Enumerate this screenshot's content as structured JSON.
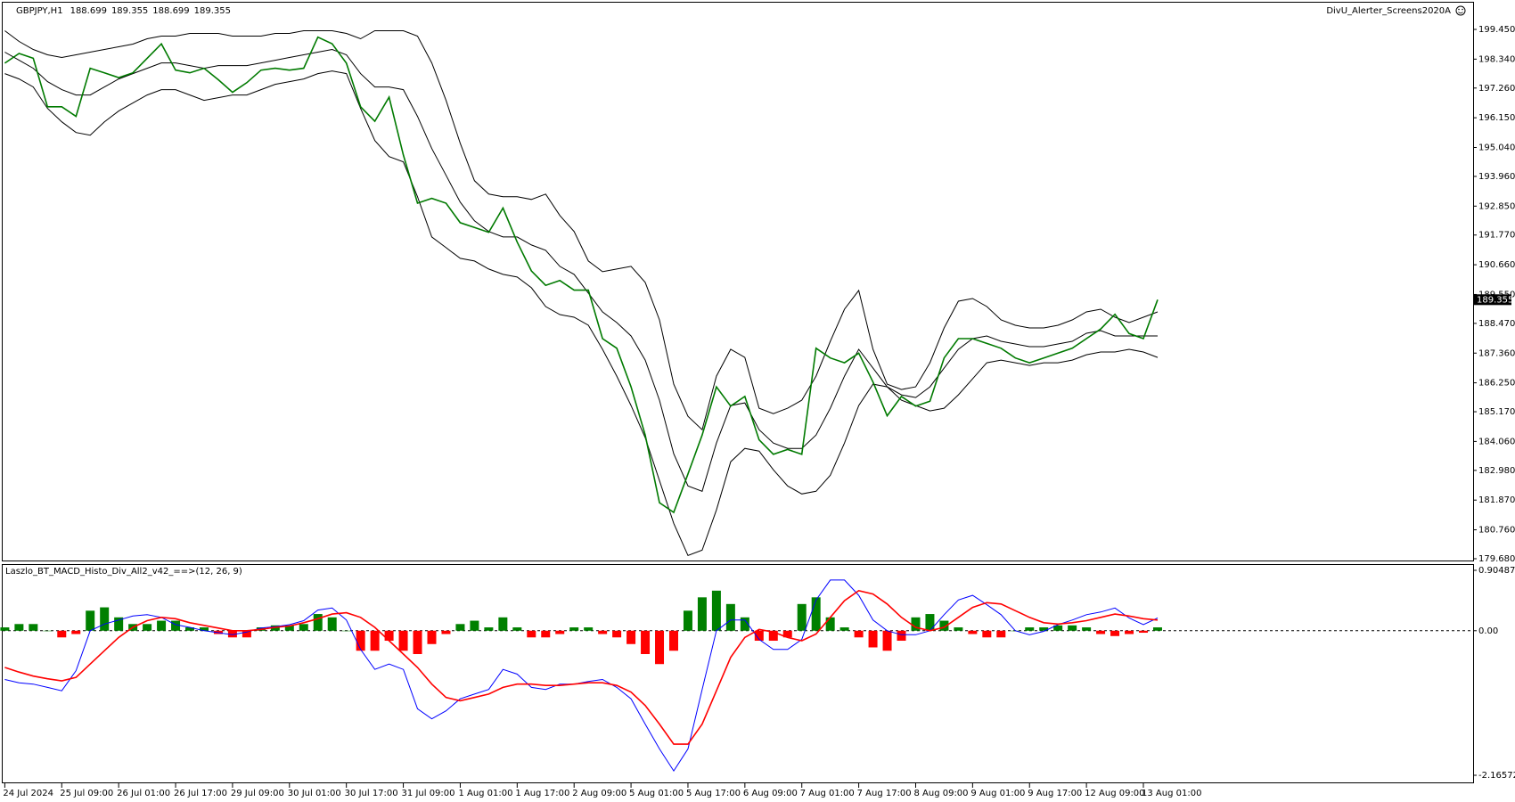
{
  "chart_data": [
    {
      "type": "line",
      "title": "GBPJPY,H1",
      "ohlc": [
        188.699,
        189.355,
        188.699,
        189.355
      ],
      "indicator_label": "DivU_Alerter_Screens2020A",
      "last_price": 189.355,
      "categories": [
        "24 Jul 2024",
        null,
        null,
        null,
        "25 Jul 09:00",
        null,
        null,
        null,
        "26 Jul 01:00",
        null,
        null,
        null,
        "26 Jul 17:00",
        null,
        null,
        null,
        "29 Jul 09:00",
        null,
        null,
        null,
        "30 Jul 01:00",
        null,
        null,
        null,
        "30 Jul 17:00",
        null,
        null,
        null,
        "31 Jul 09:00",
        null,
        null,
        null,
        "1 Aug 01:00",
        null,
        null,
        null,
        "1 Aug 17:00",
        null,
        null,
        null,
        "2 Aug 09:00",
        null,
        null,
        null,
        "5 Aug 01:00",
        null,
        null,
        null,
        "5 Aug 17:00",
        null,
        null,
        null,
        "6 Aug 09:00",
        null,
        null,
        null,
        "7 Aug 01:00",
        null,
        null,
        null,
        "7 Aug 17:00",
        null,
        null,
        null,
        "8 Aug 09:00",
        null,
        null,
        null,
        "9 Aug 01:00",
        null,
        null,
        null,
        "9 Aug 17:00",
        null,
        null,
        null,
        "12 Aug 09:00",
        null,
        null,
        null,
        "13 Aug 01:00",
        null
      ],
      "series": [
        {
          "color": "#000000",
          "values": [
            199.4,
            199.0,
            198.7,
            198.5,
            198.4,
            198.5,
            198.6,
            198.7,
            198.8,
            198.9,
            199.1,
            199.2,
            199.2,
            199.3,
            199.3,
            199.3,
            199.2,
            199.2,
            199.2,
            199.3,
            199.3,
            199.4,
            199.4,
            199.4,
            199.3,
            199.1,
            199.4,
            199.4,
            199.4,
            199.2,
            198.2,
            196.8,
            195.2,
            193.8,
            193.3,
            193.2,
            193.2,
            193.1,
            193.3,
            192.5,
            191.9,
            190.8,
            190.4,
            190.5,
            190.6,
            190.0,
            188.6,
            186.2,
            185.0,
            184.5,
            186.5,
            187.5,
            187.2,
            185.3,
            185.1,
            185.3,
            185.6,
            186.5,
            187.8,
            189.0,
            189.7,
            187.5,
            186.2,
            186.0,
            186.1,
            187.0,
            188.3,
            189.3,
            189.4,
            189.1,
            188.6,
            188.4,
            188.3,
            188.3,
            188.4,
            188.6,
            188.9,
            189.0,
            188.7,
            188.5,
            188.7,
            188.9
          ]
        },
        {
          "color": "#000000",
          "values": [
            198.6,
            198.3,
            198.0,
            197.5,
            197.2,
            197.0,
            197.0,
            197.3,
            197.6,
            197.8,
            198.0,
            198.2,
            198.2,
            198.1,
            198.0,
            198.1,
            198.1,
            198.1,
            198.2,
            198.3,
            198.4,
            198.5,
            198.6,
            198.7,
            198.5,
            197.8,
            197.3,
            197.3,
            197.2,
            196.2,
            195.0,
            194.0,
            193.0,
            192.3,
            191.9,
            191.7,
            191.7,
            191.4,
            191.2,
            190.6,
            190.3,
            189.6,
            188.9,
            188.5,
            188.0,
            187.1,
            185.6,
            183.6,
            182.4,
            182.2,
            184.0,
            185.4,
            185.5,
            184.5,
            184.0,
            183.8,
            183.8,
            184.3,
            185.3,
            186.5,
            187.5,
            186.8,
            186.1,
            185.8,
            185.7,
            186.1,
            186.8,
            187.5,
            187.9,
            188.0,
            187.8,
            187.7,
            187.6,
            187.6,
            187.7,
            187.8,
            188.1,
            188.2,
            188.0,
            188.0,
            188.0,
            188.0
          ]
        },
        {
          "color": "#000000",
          "values": [
            197.8,
            197.6,
            197.3,
            196.5,
            196.0,
            195.6,
            195.5,
            196.0,
            196.4,
            196.7,
            197.0,
            197.2,
            197.2,
            197.0,
            196.8,
            196.9,
            197.0,
            197.0,
            197.2,
            197.4,
            197.5,
            197.6,
            197.8,
            197.9,
            197.8,
            196.5,
            195.3,
            194.7,
            194.5,
            193.2,
            191.7,
            191.3,
            190.9,
            190.8,
            190.5,
            190.3,
            190.2,
            189.8,
            189.1,
            188.8,
            188.7,
            188.4,
            187.5,
            186.5,
            185.4,
            184.2,
            182.6,
            181.0,
            179.8,
            180.0,
            181.5,
            183.3,
            183.8,
            183.7,
            183.0,
            182.4,
            182.1,
            182.2,
            182.8,
            184.0,
            185.4,
            186.2,
            186.1,
            185.6,
            185.4,
            185.2,
            185.3,
            185.8,
            186.4,
            187.0,
            187.1,
            187.0,
            186.9,
            187.0,
            187.0,
            187.1,
            187.3,
            187.4,
            187.4,
            187.5,
            187.4,
            187.2
          ]
        },
        {
          "color": "#007a00",
          "values": [
            198.19,
            198.55,
            198.37,
            196.56,
            196.56,
            196.2,
            198.0,
            197.83,
            197.65,
            197.83,
            198.37,
            198.91,
            197.93,
            197.83,
            198.0,
            197.57,
            197.1,
            197.46,
            197.93,
            198.0,
            197.93,
            198.0,
            199.16,
            198.91,
            198.19,
            196.56,
            196.02,
            196.92,
            194.76,
            192.96,
            193.14,
            192.96,
            192.23,
            192.05,
            191.87,
            192.78,
            191.51,
            190.43,
            189.89,
            190.07,
            189.71,
            189.71,
            187.9,
            187.54,
            186.1,
            184.3,
            181.77,
            181.41,
            182.85,
            184.3,
            186.1,
            185.38,
            185.74,
            184.12,
            183.58,
            183.76,
            183.58,
            187.54,
            187.18,
            187.0,
            187.36,
            186.28,
            185.02,
            185.74,
            185.38,
            185.56,
            187.18,
            187.9,
            187.9,
            187.72,
            187.54,
            187.18,
            187.0,
            187.18,
            187.36,
            187.54,
            187.9,
            188.26,
            188.81,
            188.09,
            187.9,
            189.355
          ]
        }
      ],
      "ylim": [
        179.68,
        199.45
      ],
      "yticks": [
        {
          "value": 199.45,
          "label": "199.450"
        },
        {
          "value": 198.34,
          "label": "198.340"
        },
        {
          "value": 197.26,
          "label": "197.260"
        },
        {
          "value": 196.15,
          "label": "196.150"
        },
        {
          "value": 195.04,
          "label": "195.040"
        },
        {
          "value": 193.96,
          "label": "193.960"
        },
        {
          "value": 192.85,
          "label": "192.850"
        },
        {
          "value": 191.77,
          "label": "191.770"
        },
        {
          "value": 190.66,
          "label": "190.660"
        },
        {
          "value": 189.55,
          "label": "189.550"
        },
        {
          "value": 188.47,
          "label": "188.470"
        },
        {
          "value": 187.36,
          "label": "187.360"
        },
        {
          "value": 186.25,
          "label": "186.250"
        },
        {
          "value": 185.17,
          "label": "185.170"
        },
        {
          "value": 184.06,
          "label": "184.060"
        },
        {
          "value": 182.98,
          "label": "182.980"
        },
        {
          "value": 181.87,
          "label": "181.870"
        },
        {
          "value": 180.76,
          "label": "180.760"
        },
        {
          "value": 179.68,
          "label": "179.680"
        }
      ]
    },
    {
      "type": "bar",
      "title": "Laszlo_BT_MACD_Histo_Div_All2_v42_==>(12, 26, 9)",
      "values": [
        0.05,
        0.1,
        0.1,
        0,
        -0.1,
        -0.05,
        0.3,
        0.35,
        0.2,
        0.1,
        0.1,
        0.15,
        0.15,
        0.05,
        0.05,
        -0.05,
        -0.1,
        -0.1,
        0.05,
        0.08,
        0.08,
        0.1,
        0.25,
        0.2,
        0,
        -0.3,
        -0.3,
        -0.15,
        -0.3,
        -0.35,
        -0.2,
        -0.05,
        0.1,
        0.15,
        0.05,
        0.2,
        0.05,
        -0.1,
        -0.1,
        -0.05,
        0.05,
        0.05,
        -0.05,
        -0.1,
        -0.2,
        -0.35,
        -0.5,
        -0.3,
        0.3,
        0.5,
        0.6,
        0.4,
        0.2,
        -0.15,
        -0.15,
        -0.1,
        0.4,
        0.5,
        0.2,
        0.05,
        -0.1,
        -0.25,
        -0.3,
        -0.15,
        0.2,
        0.25,
        0.15,
        0.05,
        -0.05,
        -0.1,
        -0.1,
        0,
        0.05,
        0.05,
        0.08,
        0.08,
        0.05,
        -0.05,
        -0.08,
        -0.05,
        -0.03,
        0.05
      ],
      "colors": {
        "up": "#008000",
        "down": "#ff0000"
      },
      "series": [
        {
          "color": "#0000ff",
          "values": [
            -0.73,
            -0.78,
            -0.8,
            -0.85,
            -0.9,
            -0.6,
            0.0,
            0.1,
            0.16,
            0.22,
            0.24,
            0.2,
            0.09,
            0.05,
            0.0,
            -0.03,
            -0.06,
            -0.02,
            0.04,
            0.06,
            0.09,
            0.15,
            0.31,
            0.34,
            0.16,
            -0.28,
            -0.58,
            -0.5,
            -0.58,
            -1.17,
            -1.32,
            -1.2,
            -1.02,
            -0.95,
            -0.88,
            -0.58,
            -0.65,
            -0.85,
            -0.88,
            -0.8,
            -0.8,
            -0.76,
            -0.73,
            -0.85,
            -1.02,
            -1.4,
            -1.77,
            -2.1,
            -1.77,
            -0.88,
            0.0,
            0.16,
            0.16,
            -0.13,
            -0.28,
            -0.28,
            -0.13,
            0.46,
            0.76,
            0.76,
            0.53,
            0.16,
            0.0,
            -0.06,
            -0.06,
            0.0,
            0.24,
            0.46,
            0.53,
            0.39,
            0.24,
            0.0,
            -0.06,
            -0.01,
            0.09,
            0.16,
            0.24,
            0.28,
            0.34,
            0.19,
            0.09,
            0.19
          ]
        },
        {
          "color": "#ff0000",
          "values": [
            -0.55,
            -0.62,
            -0.68,
            -0.72,
            -0.75,
            -0.7,
            -0.5,
            -0.3,
            -0.1,
            0.05,
            0.15,
            0.2,
            0.18,
            0.12,
            0.08,
            0.04,
            0.0,
            0.0,
            0.02,
            0.05,
            0.07,
            0.12,
            0.18,
            0.25,
            0.27,
            0.2,
            0.05,
            -0.15,
            -0.35,
            -0.55,
            -0.8,
            -1.0,
            -1.05,
            -1.0,
            -0.95,
            -0.85,
            -0.8,
            -0.8,
            -0.82,
            -0.82,
            -0.8,
            -0.78,
            -0.78,
            -0.82,
            -0.92,
            -1.12,
            -1.4,
            -1.7,
            -1.7,
            -1.4,
            -0.9,
            -0.4,
            -0.1,
            0.02,
            -0.02,
            -0.1,
            -0.15,
            -0.05,
            0.2,
            0.45,
            0.6,
            0.55,
            0.4,
            0.2,
            0.05,
            0.0,
            0.05,
            0.2,
            0.35,
            0.42,
            0.4,
            0.3,
            0.2,
            0.12,
            0.1,
            0.12,
            0.15,
            0.2,
            0.25,
            0.22,
            0.18,
            0.16
          ]
        }
      ],
      "ylim": [
        -2.165721,
        0.90487
      ],
      "yticks": [
        0.90487,
        {
          "value": 0,
          "label": "0.00"
        },
        -2.165721
      ]
    }
  ]
}
